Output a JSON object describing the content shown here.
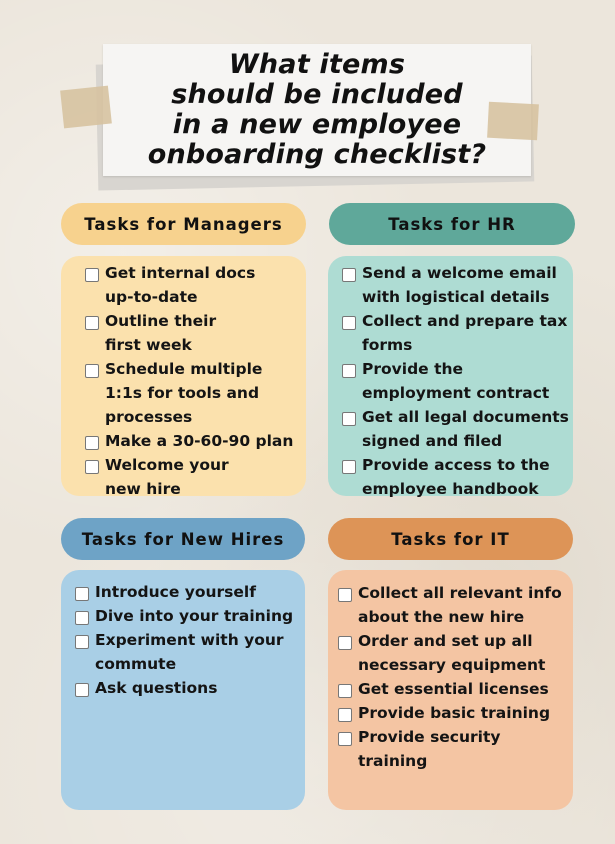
{
  "title": {
    "lines": [
      "What items",
      "should be included",
      "in a new employee",
      "onboarding checklist?"
    ]
  },
  "sections": {
    "managers": {
      "header": "Tasks for Managers",
      "items": [
        [
          "Get internal docs",
          "up-to-date"
        ],
        [
          "Outline their",
          "first week"
        ],
        [
          "Schedule multiple",
          "1:1s for tools and",
          "processes"
        ],
        [
          "Make a 30-60-90 plan"
        ],
        [
          "Welcome your",
          "new hire"
        ]
      ]
    },
    "hr": {
      "header": "Tasks for HR",
      "items": [
        [
          "Send a welcome email",
          "with logistical details"
        ],
        [
          "Collect and prepare tax",
          "forms"
        ],
        [
          "Provide the",
          "employment contract"
        ],
        [
          "Get all legal documents",
          "signed and filed"
        ],
        [
          "Provide access to the",
          "employee handbook"
        ]
      ]
    },
    "new_hires": {
      "header": "Tasks for New Hires",
      "items": [
        [
          "Introduce yourself"
        ],
        [
          "Dive into your training"
        ],
        [
          "Experiment with your",
          "commute"
        ],
        [
          "Ask questions"
        ]
      ]
    },
    "it": {
      "header": "Tasks for IT",
      "items": [
        [
          "Collect all relevant info",
          "about the new hire"
        ],
        [
          "Order and set up all",
          "necessary equipment"
        ],
        [
          "Get essential licenses"
        ],
        [
          "Provide basic training"
        ],
        [
          "Provide security",
          "training"
        ]
      ]
    }
  }
}
